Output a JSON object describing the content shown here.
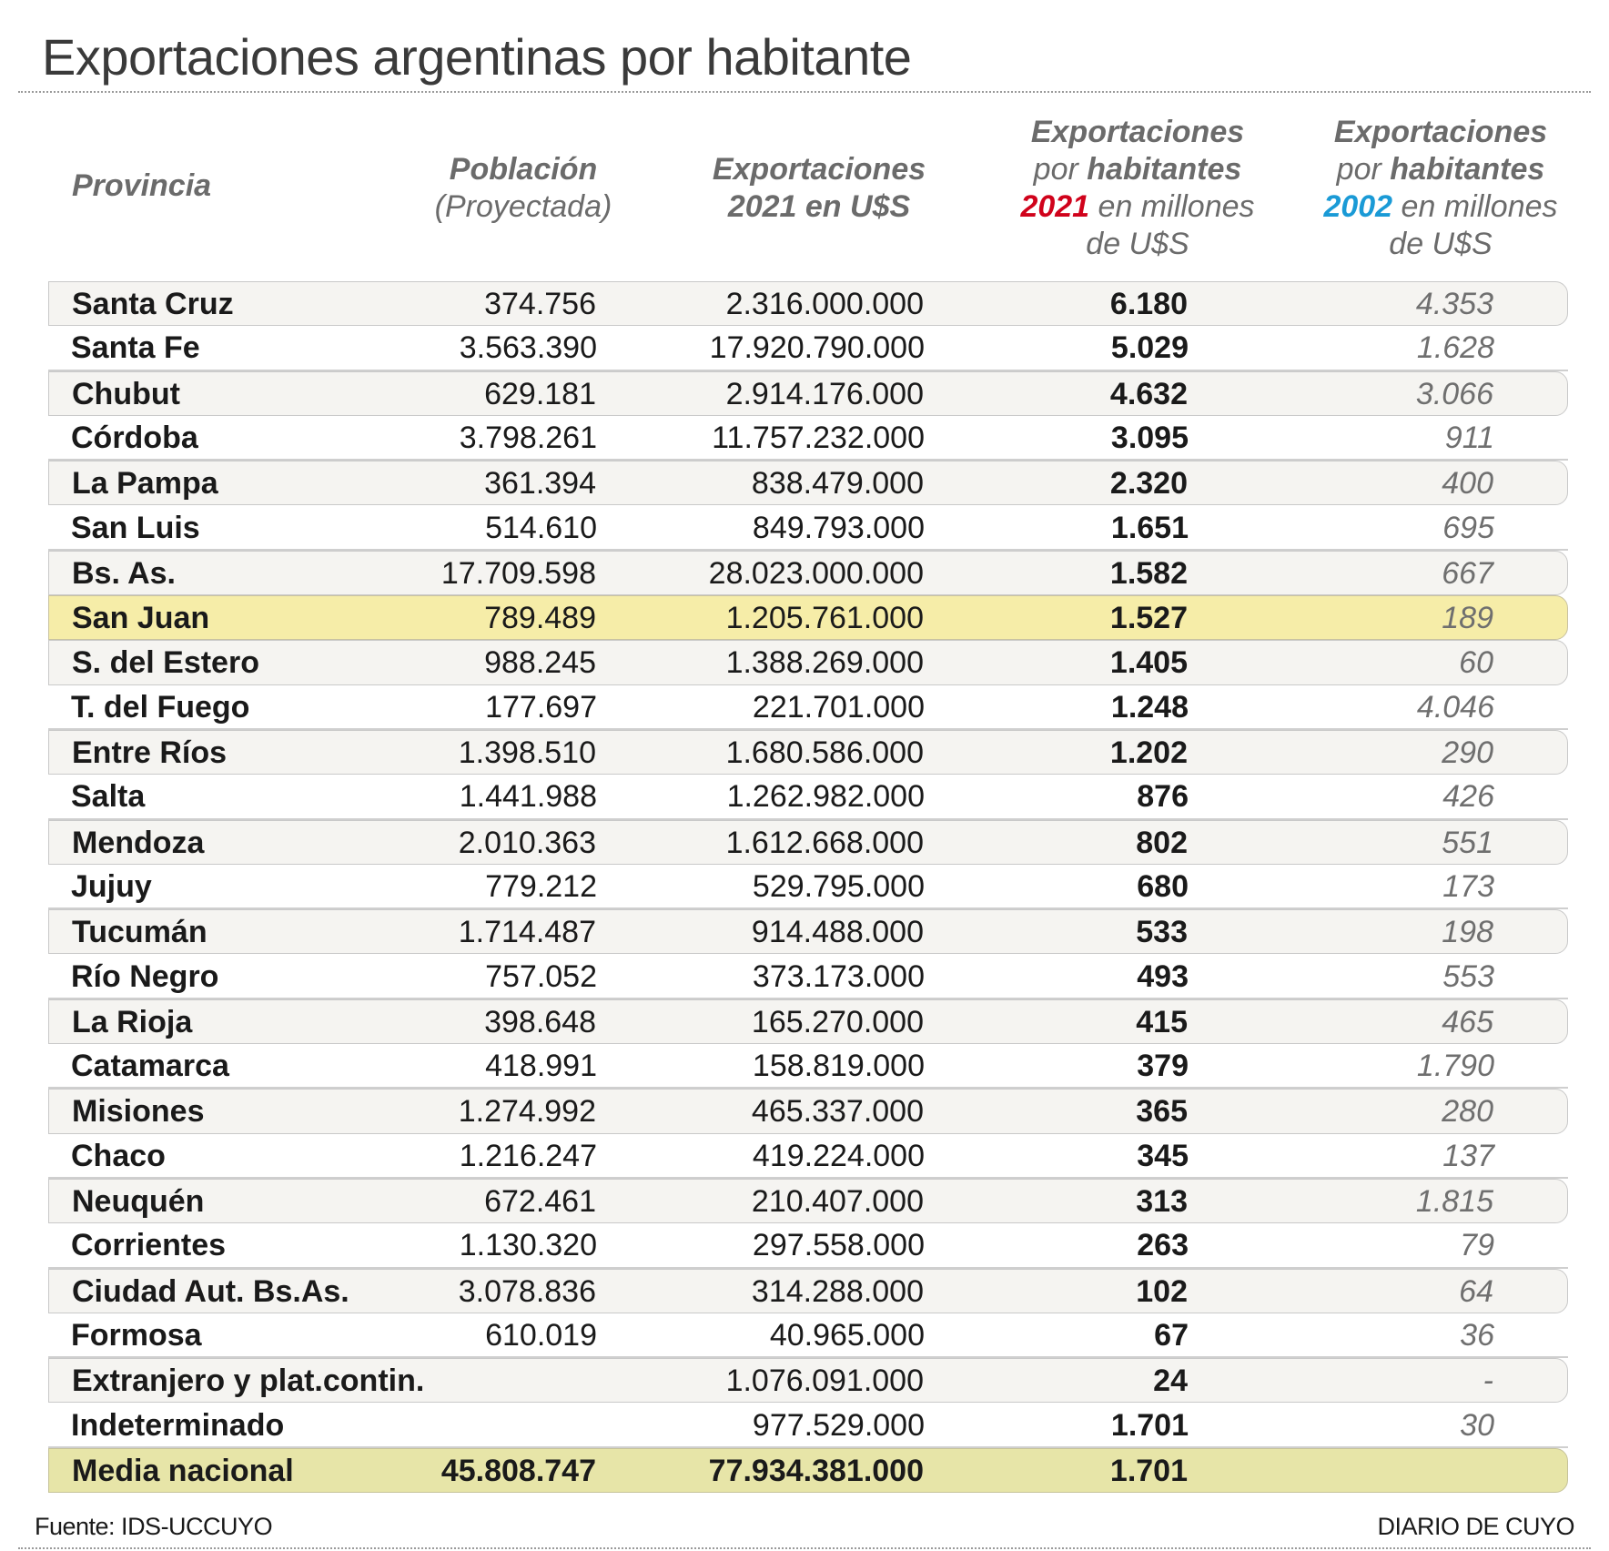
{
  "title": "Exportaciones argentinas por habitante",
  "colors": {
    "year_2021": "#d0021b",
    "year_2002": "#1a9ad6",
    "highlight_row": "#f6eda8",
    "total_row": "#e7e5a8",
    "stripe": "#f5f4f1"
  },
  "chart_data": {
    "type": "table",
    "title": "Exportaciones argentinas por habitante",
    "headers": {
      "provincia": "Provincia",
      "poblacion": "Población",
      "poblacion_sub": "(Proyectada)",
      "exportaciones_l1": "Exportaciones",
      "exportaciones_l2": "2021 en U$S",
      "p2021_l1": "Exportaciones",
      "p2021_por": "por",
      "p2021_hab": "habitantes",
      "p2021_year": "2021",
      "p2021_en": "en millones",
      "p2021_de": "de U$S",
      "p2002_l1": "Exportaciones",
      "p2002_por": "por",
      "p2002_hab": "habitantes",
      "p2002_year": "2002",
      "p2002_en": "en millones",
      "p2002_de": "de U$S"
    },
    "highlighted_row": "San Juan",
    "rows": [
      [
        "Santa Cruz",
        "374.756",
        "2.316.000.000",
        "6.180",
        "4.353"
      ],
      [
        "Santa Fe",
        "3.563.390",
        "17.920.790.000",
        "5.029",
        "1.628"
      ],
      [
        "Chubut",
        "629.181",
        "2.914.176.000",
        "4.632",
        "3.066"
      ],
      [
        "Córdoba",
        "3.798.261",
        "11.757.232.000",
        "3.095",
        "911"
      ],
      [
        "La Pampa",
        "361.394",
        "838.479.000",
        "2.320",
        "400"
      ],
      [
        "San Luis",
        "514.610",
        "849.793.000",
        "1.651",
        "695"
      ],
      [
        "Bs. As.",
        "17.709.598",
        "28.023.000.000",
        "1.582",
        "667"
      ],
      [
        "San Juan",
        "789.489",
        "1.205.761.000",
        "1.527",
        "189"
      ],
      [
        "S. del Estero",
        "988.245",
        "1.388.269.000",
        "1.405",
        "60"
      ],
      [
        "T. del Fuego",
        "177.697",
        "221.701.000",
        "1.248",
        "4.046"
      ],
      [
        "Entre Ríos",
        "1.398.510",
        "1.680.586.000",
        "1.202",
        "290"
      ],
      [
        "Salta",
        "1.441.988",
        "1.262.982.000",
        "876",
        "426"
      ],
      [
        "Mendoza",
        "2.010.363",
        "1.612.668.000",
        "802",
        "551"
      ],
      [
        "Jujuy",
        "779.212",
        "529.795.000",
        "680",
        "173"
      ],
      [
        "Tucumán",
        "1.714.487",
        "914.488.000",
        "533",
        "198"
      ],
      [
        "Río Negro",
        "757.052",
        "373.173.000",
        "493",
        "553"
      ],
      [
        "La Rioja",
        "398.648",
        "165.270.000",
        "415",
        "465"
      ],
      [
        "Catamarca",
        "418.991",
        "158.819.000",
        "379",
        "1.790"
      ],
      [
        "Misiones",
        "1.274.992",
        "465.337.000",
        "365",
        "280"
      ],
      [
        "Chaco",
        "1.216.247",
        "419.224.000",
        "345",
        "137"
      ],
      [
        "Neuquén",
        "672.461",
        "210.407.000",
        "313",
        "1.815"
      ],
      [
        "Corrientes",
        "1.130.320",
        "297.558.000",
        "263",
        "79"
      ],
      [
        "Ciudad Aut. Bs.As.",
        "3.078.836",
        "314.288.000",
        "102",
        "64"
      ],
      [
        "Formosa",
        "610.019",
        "40.965.000",
        "67",
        "36"
      ],
      [
        "Extranjero y plat.contin.",
        "",
        "1.076.091.000",
        "24",
        "-"
      ],
      [
        "Indeterminado",
        "",
        "977.529.000",
        "1.701",
        "30"
      ]
    ],
    "total_row": [
      "Media nacional",
      "45.808.747",
      "77.934.381.000",
      "1.701",
      ""
    ]
  },
  "footer": {
    "source": "Fuente: IDS-UCCUYO",
    "brand": "DIARIO DE CUYO"
  }
}
